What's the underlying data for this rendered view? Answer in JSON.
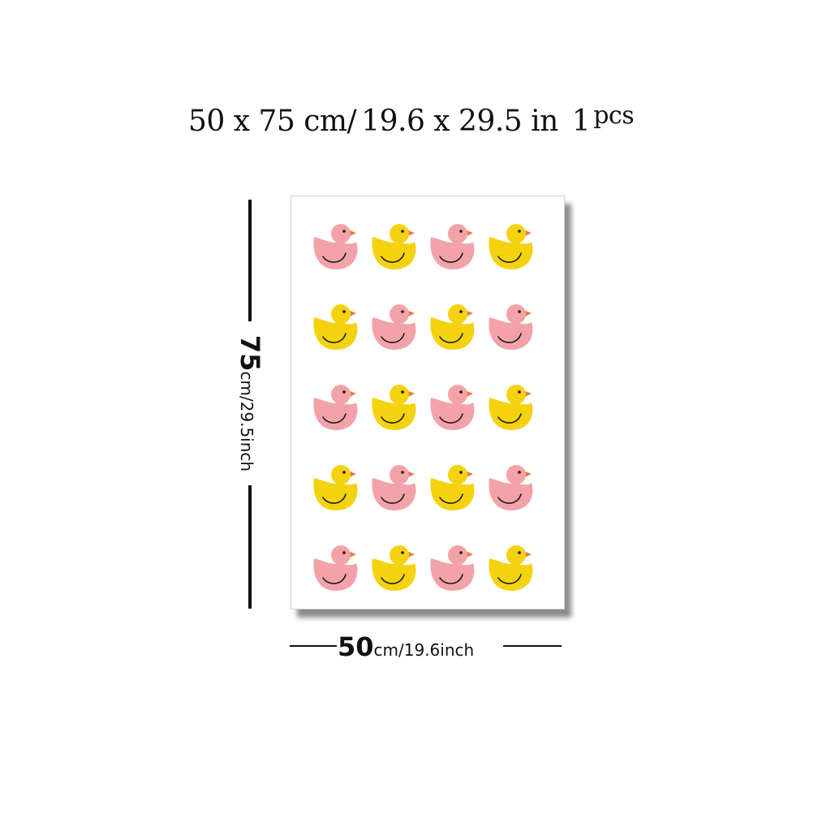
{
  "title": {
    "size_cm": "50 x 75 cm/",
    "size_in": "19.6  x  29.5 in",
    "qty_number": "1",
    "qty_unit": "pcs"
  },
  "height_dimension": {
    "value": "75",
    "unit": "cm/29.5inch"
  },
  "width_dimension": {
    "value": "50",
    "unit": "cm/19.6inch"
  },
  "poster": {
    "pattern": "duck-icon",
    "rows": 5,
    "columns": 4,
    "colors": {
      "pink": "#f3a3a8",
      "yellow": "#f5d20f",
      "beak": "#f07a3c",
      "outline": "#111111"
    },
    "grid": [
      [
        "pink",
        "yellow",
        "pink",
        "yellow"
      ],
      [
        "yellow",
        "pink",
        "yellow",
        "pink"
      ],
      [
        "pink",
        "yellow",
        "pink",
        "yellow"
      ],
      [
        "yellow",
        "pink",
        "yellow",
        "pink"
      ],
      [
        "pink",
        "yellow",
        "pink",
        "yellow"
      ]
    ]
  }
}
